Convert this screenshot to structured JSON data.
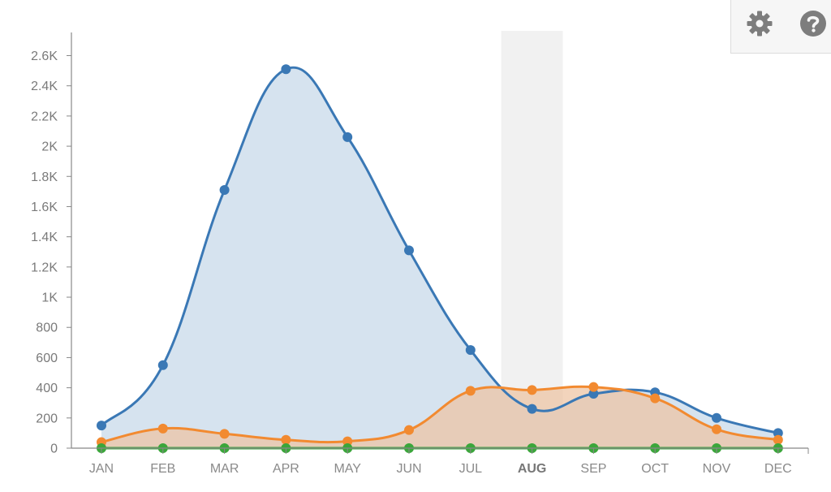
{
  "chart_data": {
    "type": "area",
    "categories": [
      "JAN",
      "FEB",
      "MAR",
      "APR",
      "MAY",
      "JUN",
      "JUL",
      "AUG",
      "SEP",
      "OCT",
      "NOV",
      "DEC"
    ],
    "highlighted_category": "AUG",
    "series": [
      {
        "color": "#3a78b5",
        "fill": "#d6e3ef",
        "values": [
          150,
          550,
          1710,
          2510,
          2060,
          1310,
          650,
          260,
          360,
          370,
          200,
          100
        ]
      },
      {
        "color": "#f28a30",
        "fill": "rgba(237,196,162,0.72)",
        "values": [
          40,
          130,
          95,
          55,
          45,
          120,
          380,
          385,
          405,
          330,
          125,
          55
        ]
      },
      {
        "color": "#3ba63b",
        "fill": "none",
        "values": [
          0,
          0,
          0,
          0,
          0,
          0,
          0,
          0,
          0,
          0,
          0,
          0
        ]
      }
    ],
    "yticks": [
      "0",
      "200",
      "400",
      "600",
      "800",
      "1K",
      "1.2K",
      "1.4K",
      "1.6K",
      "1.8K",
      "2K",
      "2.2K",
      "2.4K",
      "2.6K"
    ],
    "ylim": [
      0,
      2700
    ],
    "grid": false
  },
  "toolbar": {
    "icons": [
      "gear-icon",
      "help-icon"
    ]
  }
}
